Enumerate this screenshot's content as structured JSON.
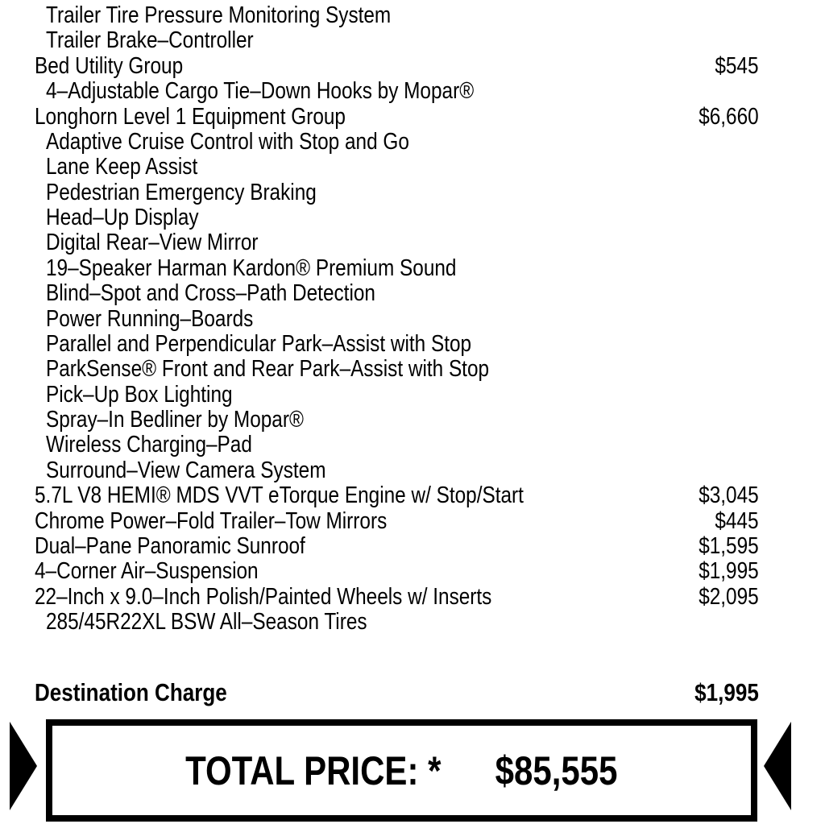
{
  "items": [
    {
      "label": "Trailer Tire Pressure Monitoring System",
      "sub": true,
      "price": ""
    },
    {
      "label": "Trailer Brake–Controller",
      "sub": true,
      "price": ""
    },
    {
      "label": "Bed Utility Group",
      "sub": false,
      "price": "$545"
    },
    {
      "label": "4–Adjustable Cargo Tie–Down Hooks by Mopar®",
      "sub": true,
      "price": ""
    },
    {
      "label": "Longhorn Level 1 Equipment Group",
      "sub": false,
      "price": "$6,660"
    },
    {
      "label": "Adaptive Cruise Control with Stop and Go",
      "sub": true,
      "price": ""
    },
    {
      "label": "Lane Keep Assist",
      "sub": true,
      "price": ""
    },
    {
      "label": "Pedestrian Emergency Braking",
      "sub": true,
      "price": ""
    },
    {
      "label": "Head–Up Display",
      "sub": true,
      "price": ""
    },
    {
      "label": "Digital Rear–View Mirror",
      "sub": true,
      "price": ""
    },
    {
      "label": "19–Speaker Harman Kardon® Premium Sound",
      "sub": true,
      "price": ""
    },
    {
      "label": "Blind–Spot and Cross–Path Detection",
      "sub": true,
      "price": ""
    },
    {
      "label": "Power Running–Boards",
      "sub": true,
      "price": ""
    },
    {
      "label": "Parallel and Perpendicular Park–Assist with Stop",
      "sub": true,
      "price": ""
    },
    {
      "label": "ParkSense® Front and Rear Park–Assist with Stop",
      "sub": true,
      "price": ""
    },
    {
      "label": "Pick–Up Box Lighting",
      "sub": true,
      "price": ""
    },
    {
      "label": "Spray–In Bedliner by Mopar®",
      "sub": true,
      "price": ""
    },
    {
      "label": "Wireless Charging–Pad",
      "sub": true,
      "price": ""
    },
    {
      "label": "Surround–View Camera System",
      "sub": true,
      "price": ""
    },
    {
      "label": "5.7L V8 HEMI® MDS VVT eTorque Engine w/ Stop/Start",
      "sub": false,
      "price": "$3,045"
    },
    {
      "label": "Chrome Power–Fold Trailer–Tow Mirrors",
      "sub": false,
      "price": "$445"
    },
    {
      "label": "Dual–Pane Panoramic Sunroof",
      "sub": false,
      "price": "$1,595"
    },
    {
      "label": "4–Corner Air–Suspension",
      "sub": false,
      "price": "$1,995"
    },
    {
      "label": "22–Inch x 9.0–Inch Polish/Painted Wheels w/ Inserts",
      "sub": false,
      "price": "$2,095"
    },
    {
      "label": "285/45R22XL BSW All–Season Tires",
      "sub": true,
      "price": ""
    }
  ],
  "destination": {
    "label": "Destination Charge",
    "price": "$1,995"
  },
  "total": {
    "label": "TOTAL PRICE: *",
    "price": "$85,555"
  }
}
